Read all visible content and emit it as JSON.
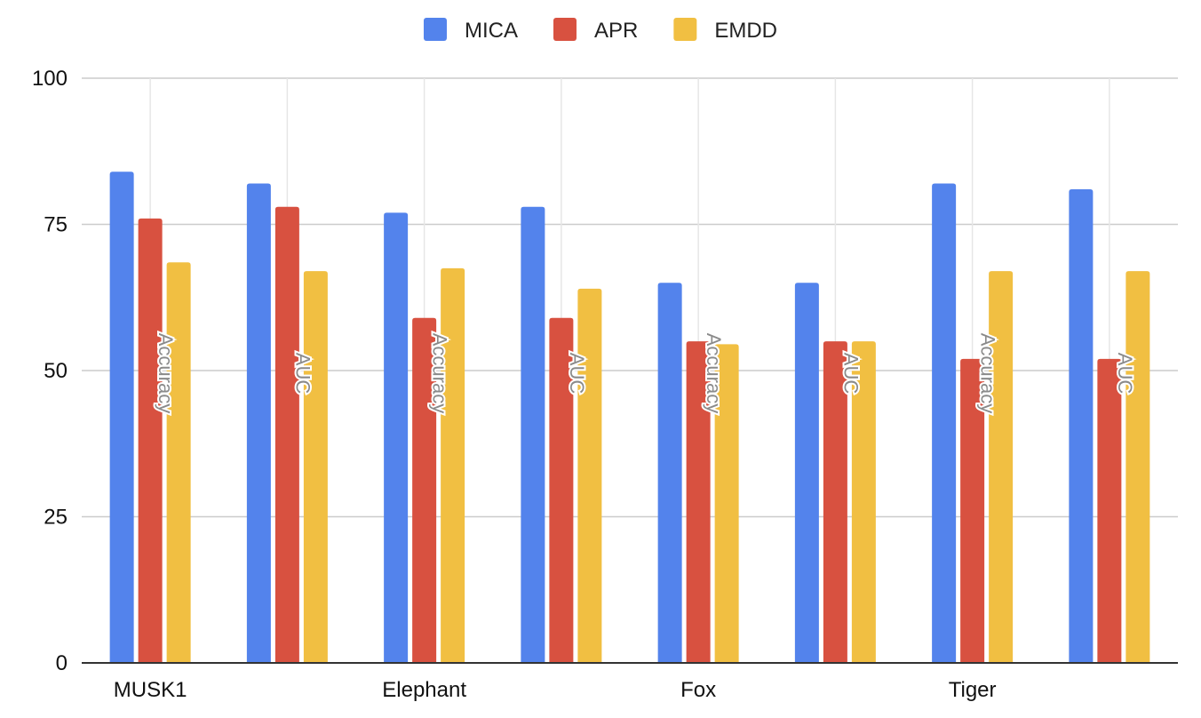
{
  "chart_data": {
    "type": "bar",
    "title": "",
    "xlabel": "",
    "ylabel": "",
    "ylim": [
      0,
      100
    ],
    "yticks": [
      0,
      25,
      50,
      75,
      100
    ],
    "grid": true,
    "legend_position": "top-center",
    "groups": [
      "MUSK1",
      "Elephant",
      "Fox",
      "Tiger"
    ],
    "categories": [
      "Accuracy",
      "AUC",
      "Accuracy",
      "AUC",
      "Accuracy",
      "AUC",
      "Accuracy",
      "AUC"
    ],
    "series": [
      {
        "name": "MICA",
        "color": "#5383EC",
        "values": [
          84,
          82,
          77,
          78,
          65,
          65,
          82,
          81
        ]
      },
      {
        "name": "APR",
        "color": "#D85140",
        "values": [
          76,
          78,
          59,
          59,
          55,
          55,
          52,
          52
        ]
      },
      {
        "name": "EMDD",
        "color": "#F1BF42",
        "values": [
          68.5,
          67,
          67.5,
          64,
          54.5,
          55,
          67,
          67
        ]
      }
    ]
  }
}
